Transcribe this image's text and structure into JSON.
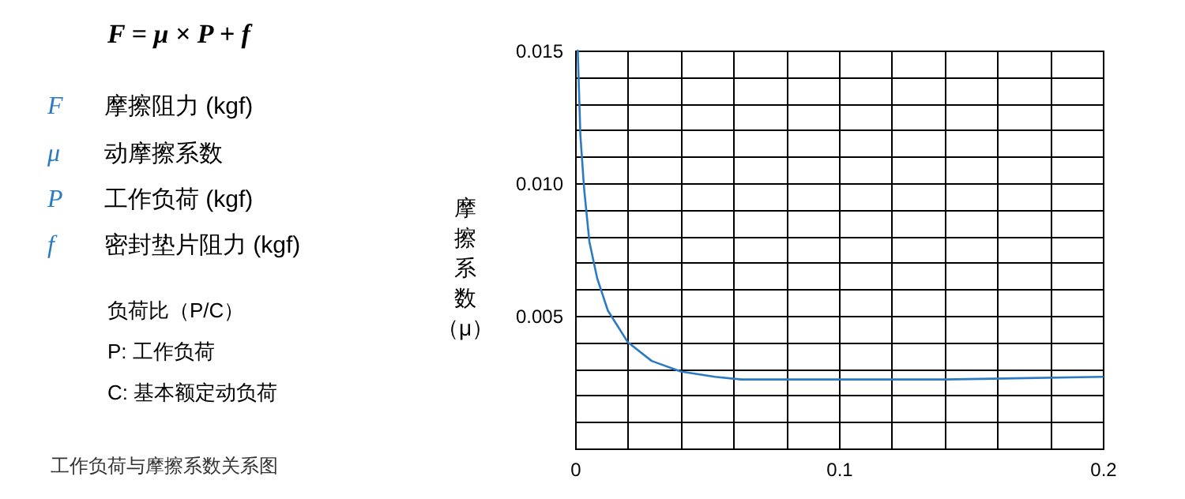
{
  "chart_data": {
    "type": "line",
    "title": "F = μ × P + f",
    "ylabel": "摩擦系数（μ）",
    "annotations": [
      "F 摩擦阻力 (kgf)",
      "μ 动摩擦系数",
      "P 工作负荷 (kgf)",
      "f 密封垫片阻力 (kgf)",
      "负荷比（P/C）",
      "P: 工作负荷",
      "C: 基本额定动负荷",
      "工作负荷与摩擦系数关系图"
    ],
    "series": [
      {
        "color": "#2b7bc4",
        "x": [
          0.001,
          0.002,
          0.0034,
          0.0054,
          0.0084,
          0.0124,
          0.02,
          0.029,
          0.04,
          0.053,
          0.063,
          0.083,
          0.1,
          0.14,
          0.2
        ],
        "values": [
          0.015,
          0.0118,
          0.0098,
          0.0078,
          0.0064,
          0.0052,
          0.004,
          0.0033,
          0.0029,
          0.0027,
          0.0026,
          0.0026,
          0.0026,
          0.0026,
          0.0027
        ]
      }
    ],
    "xlim": [
      0,
      0.2
    ],
    "xticks": [
      0,
      {
        "value": 0.02,
        "label": null
      },
      {
        "value": 0.04,
        "label": null
      },
      {
        "value": 0.06,
        "label": null
      },
      {
        "value": 0.08,
        "label": null
      },
      0.1,
      {
        "value": 0.12,
        "label": null
      },
      {
        "value": 0.14,
        "label": null
      },
      {
        "value": 0.16,
        "label": null
      },
      {
        "value": 0.18,
        "label": null
      },
      0.2
    ],
    "ylim": [
      0,
      0.015
    ],
    "yticks": [
      {
        "value": 0,
        "label": null
      },
      {
        "value": 0.001,
        "label": null
      },
      {
        "value": 0.002,
        "label": null
      },
      {
        "value": 0.003,
        "label": null
      },
      {
        "value": 0.004,
        "label": null
      },
      {
        "value": 0.005,
        "label": "0.005"
      },
      {
        "value": 0.006,
        "label": null
      },
      {
        "value": 0.007,
        "label": null
      },
      {
        "value": 0.008,
        "label": null
      },
      {
        "value": 0.009,
        "label": null
      },
      {
        "value": 0.01,
        "label": "0.010"
      },
      {
        "value": 0.011,
        "label": null
      },
      {
        "value": 0.012,
        "label": null
      },
      {
        "value": 0.013,
        "label": null
      },
      {
        "value": 0.014,
        "label": null
      },
      {
        "value": 0.015,
        "label": "0.015"
      }
    ],
    "grid": true,
    "marker": "none",
    "line_style": "solid"
  }
}
